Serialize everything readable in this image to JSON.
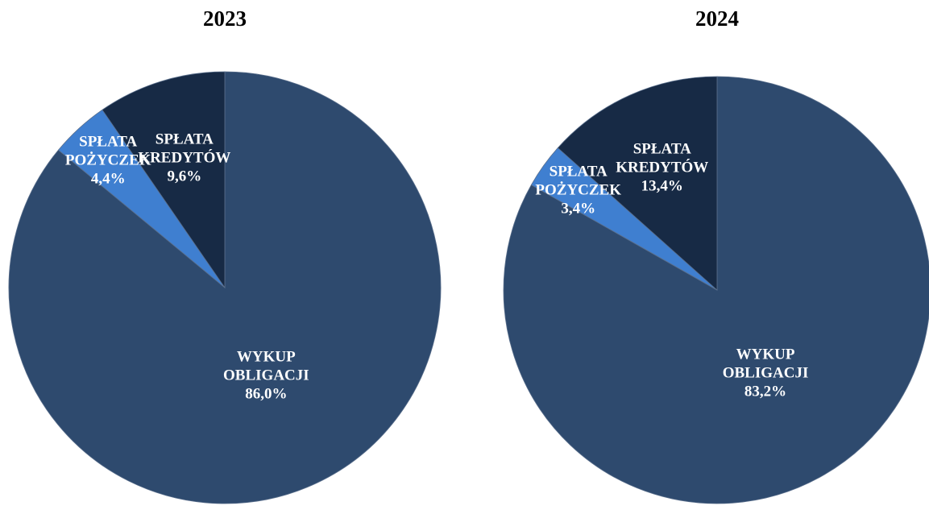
{
  "chart_data": [
    {
      "type": "pie",
      "title": "2023",
      "categories": [
        "WYKUP OBLIGACJI",
        "SPŁATA POŻYCZEK",
        "SPŁATA KREDYTÓW"
      ],
      "values": [
        86.0,
        4.4,
        9.6
      ],
      "value_labels": [
        "86,0%",
        "4,4%",
        "9,6%"
      ],
      "colors": [
        "#2e4a6e",
        "#3f7fd0",
        "#172a45"
      ]
    },
    {
      "type": "pie",
      "title": "2024",
      "categories": [
        "WYKUP OBLIGACJI",
        "SPŁATA POŻYCZEK",
        "SPŁATA KREDYTÓW"
      ],
      "values": [
        83.2,
        3.4,
        13.4
      ],
      "value_labels": [
        "83,2%",
        "3,4%",
        "13,4%"
      ],
      "colors": [
        "#2e4a6e",
        "#3f7fd0",
        "#172a45"
      ]
    }
  ]
}
